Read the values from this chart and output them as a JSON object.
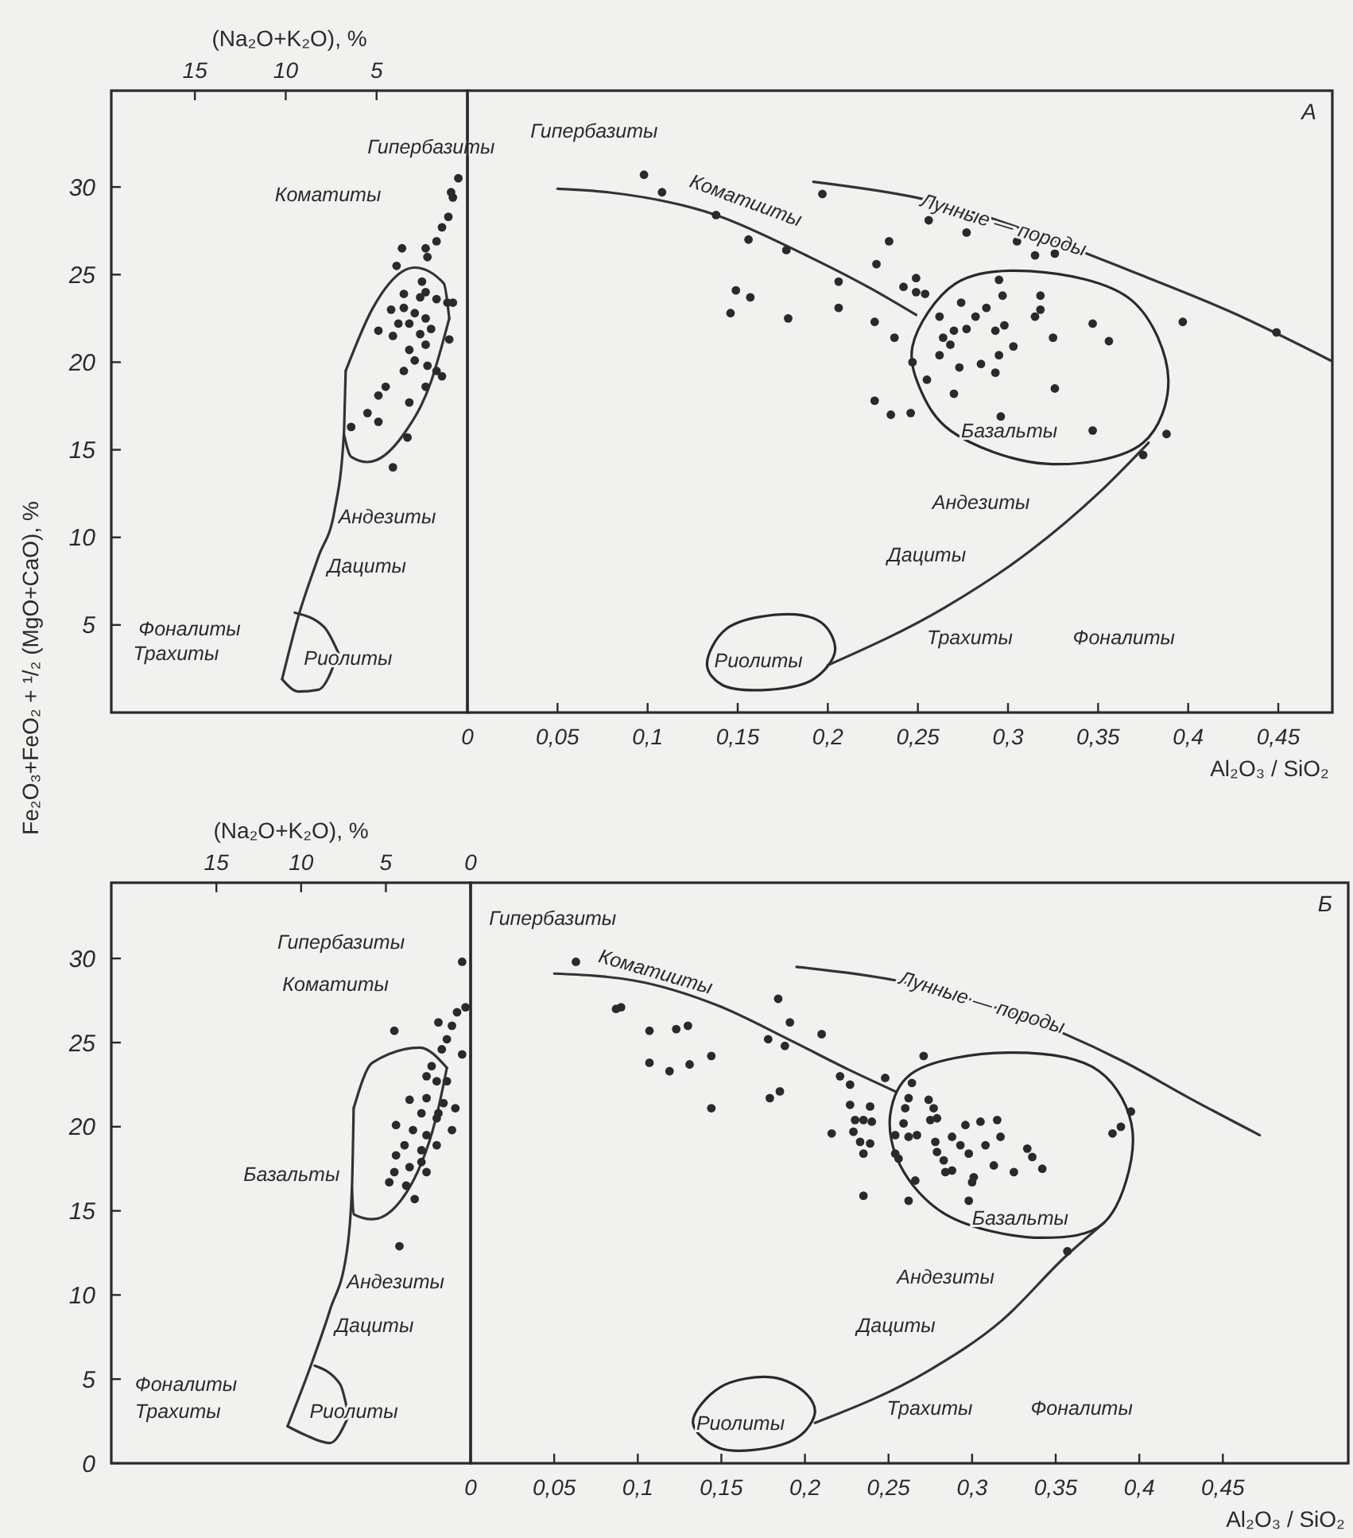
{
  "chart_data": [
    {
      "type": "scatter",
      "xlim": [
        19.6,
        0
      ],
      "xticks": [
        15,
        10,
        5
      ],
      "ylim": [
        0,
        35.5
      ],
      "yticks": [
        5,
        10,
        15,
        20,
        25,
        30
      ],
      "xlabel": "(Na₂O+K₂O), %",
      "ylabel": "Fe₂O₃+FeO₂ + ¹/₂ (MgO+CaO), %",
      "series": [
        {
          "type": "line",
          "marker": "none",
          "color": "#333333",
          "x": [
            10.2,
            9.3,
            8.2,
            7.3,
            6.8,
            6.75,
            6.7
          ],
          "values": [
            1.9,
            5.5,
            8.9,
            11.6,
            15.9,
            17.6,
            19.5
          ]
        },
        {
          "type": "line",
          "marker": "none",
          "color": "#333333",
          "x": [
            6.7,
            5.2,
            2.9,
            1.3,
            1.0
          ],
          "values": [
            19.5,
            23.1,
            25.4,
            24.5,
            22.5
          ]
        },
        {
          "type": "line",
          "marker": "none",
          "color": "#333333",
          "x": [
            6.8,
            6.4,
            5.5,
            3.5,
            2.0,
            1.0
          ],
          "values": [
            15.9,
            14.6,
            14.3,
            15.9,
            18.9,
            22.5
          ]
        },
        {
          "type": "line",
          "marker": "none",
          "color": "#333333",
          "x": [
            9.5,
            7.9,
            7.1
          ],
          "values": [
            5.7,
            4.9,
            3.4
          ]
        },
        {
          "type": "line",
          "marker": "none",
          "color": "#333333",
          "x": [
            10.2,
            9.3,
            8.2,
            7.1
          ],
          "values": [
            1.9,
            1.2,
            1.3,
            3.4
          ]
        },
        {
          "marker": "circle",
          "color": "#2a2a2a",
          "x": [
            0.5,
            0.9,
            0.8,
            1.05,
            1.4,
            1.7,
            2.3,
            2.2,
            3.6,
            3.9,
            2.5,
            2.3,
            3.5,
            2.6,
            1.7,
            1.1,
            3.5,
            4.2,
            2.9,
            2.3,
            3.2,
            2.0,
            2.6,
            3.8,
            4.9,
            4.1,
            1.0,
            2.3,
            3.2,
            2.9,
            2.2,
            1.7,
            3.5,
            4.5,
            4.9,
            3.2,
            5.5,
            4.9,
            6.4,
            3.3,
            4.1,
            2.3,
            1.4,
            0.8
          ],
          "values": [
            30.5,
            29.7,
            29.4,
            28.3,
            27.7,
            26.9,
            26.5,
            26.0,
            26.5,
            25.5,
            24.6,
            24.0,
            23.9,
            23.7,
            23.6,
            23.4,
            23.1,
            23.0,
            22.8,
            22.5,
            22.2,
            21.9,
            21.6,
            22.2,
            21.8,
            21.5,
            21.3,
            21.0,
            20.7,
            20.1,
            19.8,
            19.5,
            19.5,
            18.6,
            18.1,
            17.7,
            17.1,
            16.6,
            16.3,
            15.7,
            14.0,
            18.6,
            19.2,
            23.4
          ]
        }
      ],
      "annotations": [
        "Гипербазиты",
        "Коматиты",
        "Андезиты",
        "Дациты",
        "Фоналиты",
        "Трахиты",
        "Риолиты"
      ]
    },
    {
      "type": "scatter",
      "title": "А",
      "tick_labels": "x",
      "xlim": [
        0,
        0.48
      ],
      "xticks": [
        0,
        {
          "value": 0.05,
          "label": "0,05"
        },
        {
          "value": 0.1,
          "label": "0,1"
        },
        {
          "value": 0.15,
          "label": "0,15"
        },
        {
          "value": 0.2,
          "label": "0,2"
        },
        {
          "value": 0.25,
          "label": "0,25"
        },
        {
          "value": 0.3,
          "label": "0,3"
        },
        {
          "value": 0.35,
          "label": "0,35"
        },
        {
          "value": 0.4,
          "label": "0,4"
        },
        {
          "value": 0.45,
          "label": "0,45"
        }
      ],
      "ylim": [
        0,
        35.5
      ],
      "xlabel": "Al₂O₃ / SiO₂",
      "series": [
        {
          "type": "line",
          "marker": "none",
          "color": "#333333",
          "x": [
            0.05,
            0.078,
            0.138,
            0.186,
            0.224,
            0.249
          ],
          "values": [
            29.9,
            29.7,
            28.4,
            26.2,
            24.2,
            22.7
          ]
        },
        {
          "type": "line",
          "marker": "none",
          "color": "#333333",
          "x": [
            0.192,
            0.249,
            0.378,
            0.423,
            0.479
          ],
          "values": [
            30.3,
            29.4,
            24.8,
            22.9,
            20.1
          ]
        },
        {
          "type": "line",
          "marker": "none",
          "color": "#333333",
          "x": [
            0.2,
            0.265,
            0.312,
            0.35,
            0.378
          ],
          "values": [
            2.7,
            6.0,
            9.2,
            12.5,
            15.4
          ]
        },
        {
          "marker": "circle",
          "color": "#2a2a2a",
          "x": [
            0.098,
            0.108,
            0.138,
            0.156,
            0.177,
            0.197,
            0.149,
            0.157,
            0.146,
            0.178,
            0.206,
            0.206,
            0.227,
            0.234,
            0.226,
            0.226,
            0.235,
            0.246,
            0.237,
            0.242,
            0.249,
            0.249,
            0.254,
            0.256,
            0.277,
            0.305,
            0.315,
            0.326,
            0.295,
            0.297,
            0.318,
            0.262,
            0.274,
            0.282,
            0.288,
            0.277,
            0.27,
            0.264,
            0.268,
            0.293,
            0.298,
            0.315,
            0.318,
            0.303,
            0.325,
            0.347,
            0.356,
            0.397,
            0.449,
            0.262,
            0.273,
            0.285,
            0.295,
            0.293,
            0.255,
            0.27,
            0.296,
            0.326,
            0.347,
            0.375,
            0.388,
            0.247
          ],
          "values": [
            30.7,
            29.7,
            28.4,
            27.0,
            26.4,
            29.6,
            24.1,
            23.7,
            22.8,
            22.5,
            24.6,
            23.1,
            25.6,
            26.9,
            22.3,
            17.8,
            17.0,
            17.1,
            21.4,
            24.3,
            24.8,
            24.0,
            23.9,
            28.1,
            27.4,
            26.9,
            26.1,
            26.2,
            24.7,
            23.8,
            23.8,
            22.6,
            23.4,
            22.6,
            23.1,
            21.9,
            21.8,
            21.4,
            21.0,
            21.8,
            22.1,
            22.6,
            23.0,
            20.9,
            21.4,
            22.2,
            21.2,
            22.3,
            21.7,
            20.4,
            19.7,
            19.9,
            20.4,
            19.4,
            19.0,
            18.2,
            16.9,
            18.5,
            16.1,
            14.7,
            15.9,
            20.0
          ]
        }
      ],
      "annotations": [
        "Гипербазиты",
        "Коматииты",
        "Лунные — породы",
        "Базальты",
        "Андезиты",
        "Дациты",
        "Трахиты",
        "Фоналиты",
        "Риолиты"
      ]
    },
    {
      "type": "scatter",
      "xlim": [
        21.2,
        0
      ],
      "xticks": [
        15,
        10,
        5,
        0
      ],
      "ylim": [
        0,
        34.5
      ],
      "yticks": [
        0,
        5,
        10,
        15,
        20,
        25,
        30
      ],
      "xlabel": "(Na₂O+K₂O), %",
      "series": [
        {
          "type": "line",
          "marker": "none",
          "color": "#333333",
          "x": [
            10.8,
            9.5,
            8.3,
            7.3,
            7.0,
            6.9
          ],
          "values": [
            2.2,
            5.6,
            9.1,
            12.6,
            16.4,
            21.1
          ]
        },
        {
          "type": "line",
          "marker": "none",
          "color": "#333333",
          "x": [
            6.9,
            5.8,
            3.0,
            1.4
          ],
          "values": [
            21.1,
            23.8,
            24.7,
            23.5
          ]
        },
        {
          "type": "line",
          "marker": "none",
          "color": "#333333",
          "x": [
            7.0,
            6.9,
            5.8,
            3.6,
            1.9,
            1.4
          ],
          "values": [
            16.4,
            14.8,
            14.5,
            16.4,
            21.1,
            23.5
          ]
        },
        {
          "type": "line",
          "marker": "none",
          "color": "#333333",
          "x": [
            9.2,
            7.7,
            7.2
          ],
          "values": [
            5.8,
            4.7,
            2.8
          ]
        },
        {
          "type": "line",
          "marker": "none",
          "color": "#333333",
          "x": [
            10.8,
            9.8,
            8.3,
            7.2
          ],
          "values": [
            2.2,
            1.7,
            1.2,
            2.8
          ]
        },
        {
          "marker": "circle",
          "color": "#2a2a2a",
          "x": [
            0.5,
            0.3,
            0.8,
            4.5,
            1.9,
            1.1,
            1.4,
            1.7,
            0.5,
            2.3,
            2.6,
            2.0,
            3.6,
            2.6,
            1.6,
            0.9,
            2.9,
            2.0,
            4.4,
            3.4,
            2.6,
            1.1,
            3.9,
            2.9,
            2.0,
            4.4,
            3.6,
            2.6,
            4.5,
            4.8,
            3.8,
            3.3,
            4.2,
            2.9,
            1.4,
            1.9
          ],
          "values": [
            29.8,
            27.1,
            26.8,
            25.7,
            26.2,
            26.0,
            25.2,
            24.6,
            24.3,
            23.6,
            23.0,
            22.7,
            21.6,
            21.7,
            21.4,
            21.1,
            20.8,
            20.5,
            20.1,
            19.8,
            19.5,
            19.8,
            18.9,
            18.6,
            18.9,
            18.3,
            17.6,
            17.3,
            17.3,
            16.7,
            16.5,
            15.7,
            12.9,
            17.9,
            22.7,
            20.8
          ]
        }
      ],
      "annotations": [
        "Гипербазиты",
        "Коматиты",
        "Базальты",
        "Андезиты",
        "Дациты",
        "Фоналиты",
        "Трахиты",
        "Риолиты"
      ]
    },
    {
      "type": "scatter",
      "title": "Б",
      "tick_labels": "x",
      "xlim": [
        0,
        0.525
      ],
      "xticks": [
        0,
        {
          "value": 0.05,
          "label": "0,05"
        },
        {
          "value": 0.1,
          "label": "0,1"
        },
        {
          "value": 0.15,
          "label": "0,15"
        },
        {
          "value": 0.2,
          "label": "0,2"
        },
        {
          "value": 0.25,
          "label": "0,25"
        },
        {
          "value": 0.3,
          "label": "0,3"
        },
        {
          "value": 0.35,
          "label": "0,35"
        },
        {
          "value": 0.4,
          "label": "0,4"
        },
        {
          "value": 0.45,
          "label": "0,45"
        }
      ],
      "ylim": [
        0,
        34.5
      ],
      "xlabel": "Al₂O₃ / SiO₂",
      "series": [
        {
          "type": "line",
          "marker": "none",
          "color": "#333333",
          "x": [
            0.05,
            0.097,
            0.148,
            0.192,
            0.226,
            0.254
          ],
          "values": [
            29.1,
            28.7,
            27.2,
            25.1,
            23.4,
            22.1
          ]
        },
        {
          "type": "line",
          "marker": "none",
          "color": "#333333",
          "x": [
            0.195,
            0.254,
            0.39,
            0.43,
            0.472
          ],
          "values": [
            29.5,
            28.7,
            23.9,
            21.7,
            19.5
          ]
        },
        {
          "type": "line",
          "marker": "none",
          "color": "#333333",
          "x": [
            0.206,
            0.274,
            0.318,
            0.356,
            0.379
          ],
          "values": [
            2.4,
            5.5,
            8.5,
            12.3,
            14.3
          ]
        },
        {
          "marker": "circle",
          "color": "#2a2a2a",
          "x": [
            0.063,
            0.087,
            0.09,
            0.107,
            0.123,
            0.13,
            0.107,
            0.119,
            0.131,
            0.144,
            0.144,
            0.184,
            0.191,
            0.21,
            0.178,
            0.188,
            0.179,
            0.185,
            0.216,
            0.221,
            0.227,
            0.227,
            0.23,
            0.235,
            0.24,
            0.239,
            0.229,
            0.233,
            0.239,
            0.235,
            0.235,
            0.248,
            0.264,
            0.271,
            0.262,
            0.26,
            0.274,
            0.277,
            0.279,
            0.275,
            0.259,
            0.254,
            0.262,
            0.267,
            0.254,
            0.256,
            0.266,
            0.262,
            0.278,
            0.279,
            0.283,
            0.284,
            0.288,
            0.288,
            0.293,
            0.296,
            0.298,
            0.301,
            0.3,
            0.298,
            0.305,
            0.308,
            0.313,
            0.315,
            0.317,
            0.325,
            0.333,
            0.336,
            0.342,
            0.384,
            0.389,
            0.395,
            0.357
          ],
          "values": [
            29.8,
            27.0,
            27.1,
            25.7,
            25.8,
            26.0,
            23.8,
            23.3,
            23.7,
            24.2,
            21.1,
            27.6,
            26.2,
            25.5,
            25.2,
            24.8,
            21.7,
            22.1,
            19.6,
            23.0,
            22.5,
            21.3,
            20.4,
            20.4,
            20.3,
            21.2,
            19.7,
            19.1,
            19.0,
            18.4,
            15.9,
            22.9,
            22.6,
            24.2,
            21.7,
            21.1,
            21.6,
            21.1,
            20.5,
            20.4,
            20.2,
            19.5,
            19.4,
            19.5,
            18.4,
            18.1,
            16.8,
            15.6,
            19.1,
            18.5,
            18.0,
            17.3,
            17.4,
            19.4,
            18.9,
            20.1,
            18.4,
            17.0,
            16.7,
            15.6,
            20.3,
            18.9,
            17.7,
            20.4,
            19.4,
            17.3,
            18.7,
            18.2,
            17.5,
            19.6,
            20.0,
            20.9,
            12.6
          ]
        }
      ],
      "annotations": [
        "Гипербазиты",
        "Коматииты",
        "Лунные — породы",
        "Базальты",
        "Андезиты",
        "Дациты",
        "Трахиты",
        "Фоналиты",
        "Риолиты"
      ]
    }
  ]
}
